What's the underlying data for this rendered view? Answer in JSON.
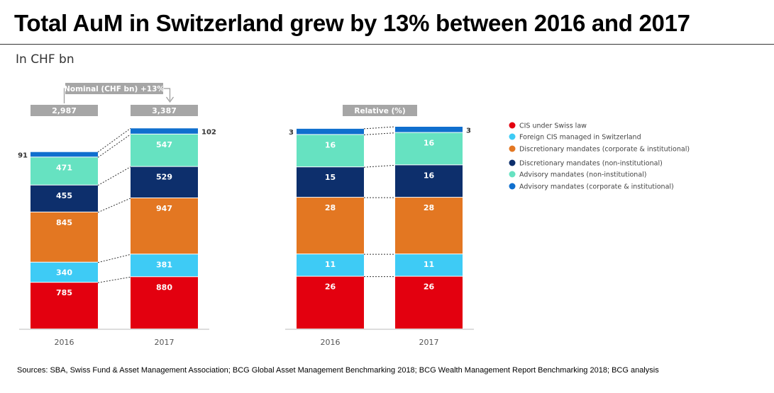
{
  "title": "Total AuM in Switzerland grew by 13% between 2016 and 2017",
  "subtitle": "In CHF bn",
  "sources": "Sources: SBA, Swiss Fund & Asset Management Association; BCG Global Asset Management Benchmarking 2018; BCG Wealth Management Report Benchmarking 2018; BCG analysis",
  "colors": {
    "cis_swiss": "#e3000f",
    "foreign_cis": "#3ecbf5",
    "disc_corp": "#e37722",
    "disc_noninst": "#0d2f6c",
    "adv_noninst": "#66e2c1",
    "adv_corp": "#0f6fce"
  },
  "chart_data": [
    {
      "type": "bar",
      "stacked": true,
      "categories": [
        "2016",
        "2017"
      ],
      "series": [
        {
          "name": "CIS under Swiss law",
          "values": [
            785,
            880
          ]
        },
        {
          "name": "Foreign CIS managed in Switzerland",
          "values": [
            340,
            381
          ]
        },
        {
          "name": "Discretionary mandates (corporate & institutional)",
          "values": [
            845,
            947
          ]
        },
        {
          "name": "Discretionary mandates (non-institutional)",
          "values": [
            455,
            529
          ]
        },
        {
          "name": "Advisory mandates (non-institutional)",
          "values": [
            471,
            547
          ]
        },
        {
          "name": "Advisory mandates (corporate & institutional)",
          "values": [
            91,
            102
          ]
        }
      ],
      "totals": [
        "2,987",
        "3,387"
      ],
      "annotation": "Nominal (CHF bn) +13%"
    },
    {
      "type": "bar",
      "stacked": true,
      "categories": [
        "2016",
        "2017"
      ],
      "series": [
        {
          "name": "CIS under Swiss law",
          "values": [
            26,
            26
          ]
        },
        {
          "name": "Foreign CIS managed in Switzerland",
          "values": [
            11,
            11
          ]
        },
        {
          "name": "Discretionary mandates (corporate & institutional)",
          "values": [
            28,
            28
          ]
        },
        {
          "name": "Discretionary mandates (non-institutional)",
          "values": [
            15,
            16
          ]
        },
        {
          "name": "Advisory mandates (non-institutional)",
          "values": [
            16,
            16
          ]
        },
        {
          "name": "Advisory mandates (corporate & institutional)",
          "values": [
            3,
            3
          ]
        }
      ],
      "annotation": "Relative (%)"
    }
  ]
}
